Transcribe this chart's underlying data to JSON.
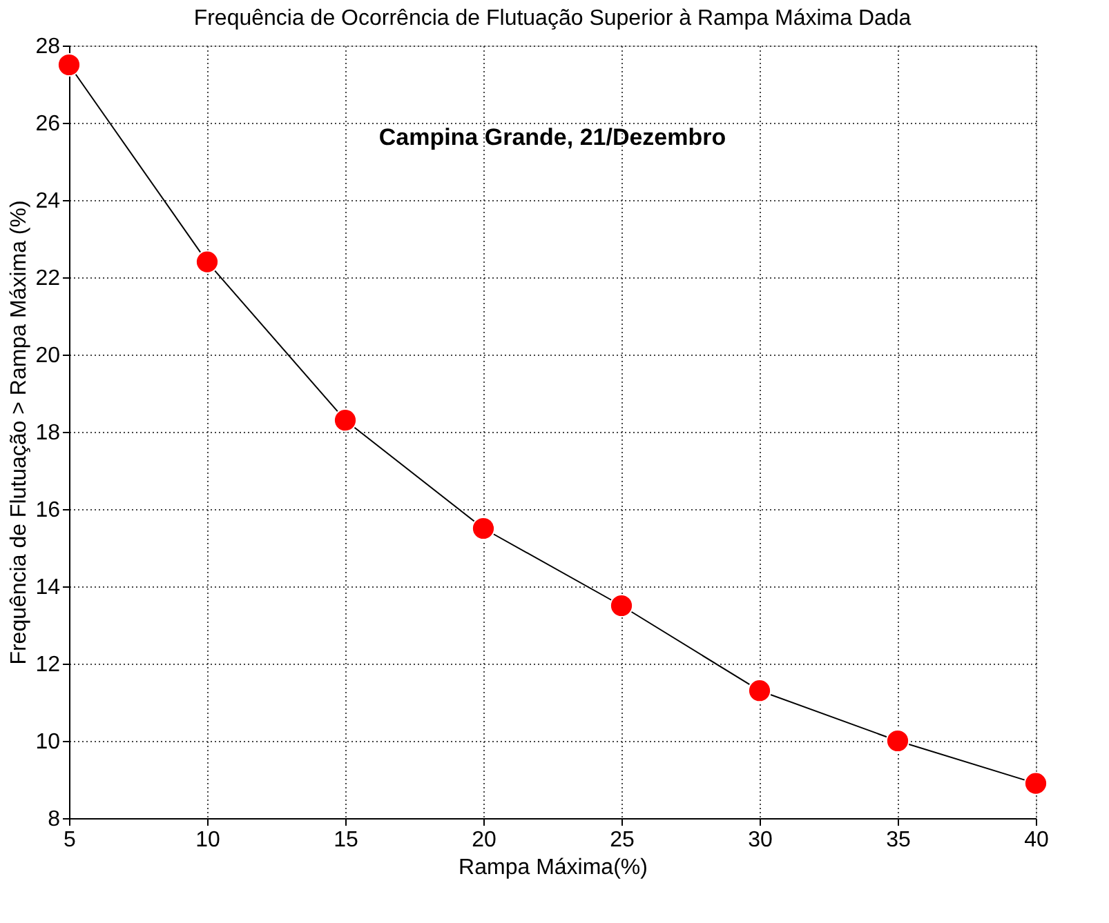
{
  "chart_data": {
    "type": "line",
    "title": "Frequência de Ocorrência de Flutuação Superior à Rampa Máxima Dada",
    "xlabel": "Rampa Máxima(%)",
    "ylabel": "Frequência de Flutuação > Rampa Máxima (%)",
    "annotations": [
      "Campina Grande, 21/Dezembro"
    ],
    "x": [
      5,
      10,
      15,
      20,
      25,
      30,
      35,
      40
    ],
    "series": [
      {
        "color": "#ff0000",
        "values": [
          27.5,
          22.4,
          18.3,
          15.5,
          13.5,
          11.3,
          10.0,
          8.9
        ]
      }
    ],
    "xlim": [
      5,
      40
    ],
    "xticks": [
      5,
      10,
      15,
      20,
      25,
      30,
      35,
      40
    ],
    "ylim": [
      8,
      28
    ],
    "yticks": [
      8,
      10,
      12,
      14,
      16,
      18,
      20,
      22,
      24,
      26,
      28
    ],
    "grid": true,
    "marker": "circle",
    "line_style": "solid"
  }
}
